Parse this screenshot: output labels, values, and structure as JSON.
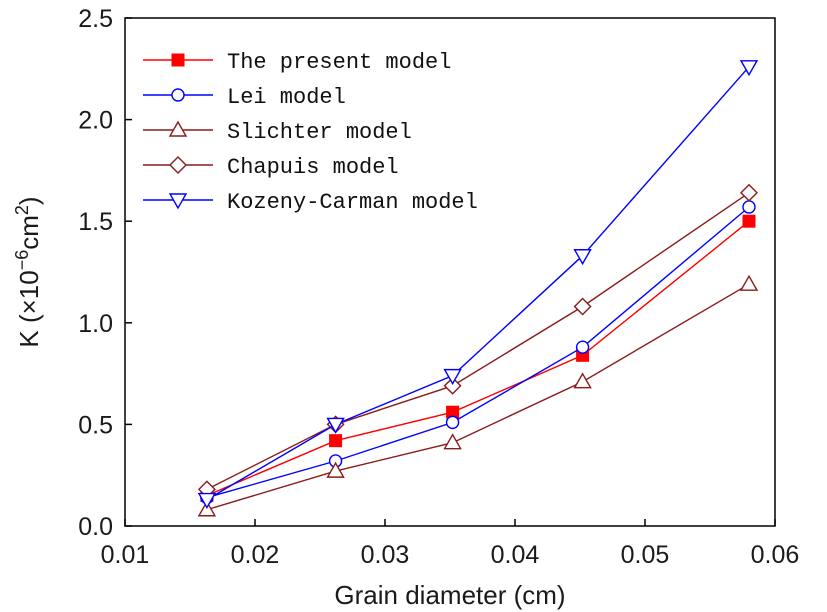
{
  "chart_data": {
    "type": "line",
    "xlabel": "Grain diameter (cm)",
    "ylabel": {
      "prefix": "K  (",
      "times": "×",
      "base": "10",
      "exp": "−6",
      "unit": "cm",
      "unit_exp": "2",
      "suffix": ")"
    },
    "xlim": [
      0.01,
      0.06
    ],
    "ylim": [
      0.0,
      2.5
    ],
    "xticks": [
      0.01,
      0.02,
      0.03,
      0.04,
      0.05,
      0.06
    ],
    "xtick_labels": [
      "0.01",
      "0.02",
      "0.03",
      "0.04",
      "0.05",
      "0.06"
    ],
    "yticks": [
      0.0,
      0.5,
      1.0,
      1.5,
      2.0,
      2.5
    ],
    "ytick_labels": [
      "0.0",
      "0.5",
      "1.0",
      "1.5",
      "2.0",
      "2.5"
    ],
    "grid": false,
    "legend_position": "top-left",
    "x": [
      0.0163,
      0.0262,
      0.0352,
      0.0452,
      0.058
    ],
    "series": [
      {
        "name": "The present model",
        "values": [
          0.15,
          0.42,
          0.56,
          0.84,
          1.5
        ],
        "color": "#ff0000",
        "marker": "filled-square"
      },
      {
        "name": "Lei model",
        "values": [
          0.14,
          0.32,
          0.51,
          0.88,
          1.57
        ],
        "color": "#0000ff",
        "marker": "open-circle"
      },
      {
        "name": "Slichter model",
        "values": [
          0.08,
          0.27,
          0.41,
          0.71,
          1.19
        ],
        "color": "#8b1a1a",
        "marker": "open-triangle-up"
      },
      {
        "name": "Chapuis model",
        "values": [
          0.18,
          0.5,
          0.69,
          1.08,
          1.64
        ],
        "color": "#8b1a1a",
        "marker": "open-diamond"
      },
      {
        "name": "Kozeny-Carman model",
        "values": [
          0.13,
          0.5,
          0.74,
          1.33,
          2.26
        ],
        "color": "#0000ff",
        "marker": "open-triangle-down"
      }
    ]
  }
}
